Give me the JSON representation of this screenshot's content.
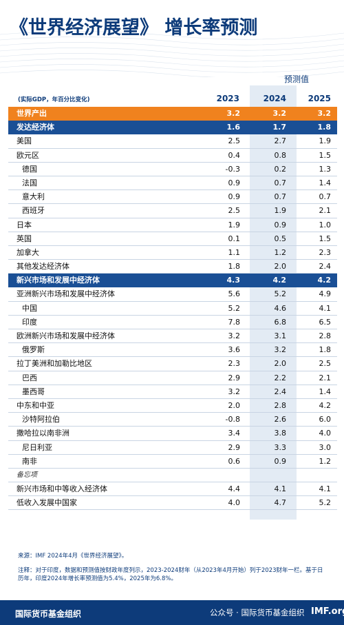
{
  "title": "《世界经济展望》 增长率预测",
  "projection_label": "预测值",
  "subheading": "(实际GDP，年百分比变化)",
  "colors": {
    "navy": "#0d3b7a",
    "orange": "#f0821e",
    "group_blue": "#1a4f95"
  },
  "chart_data": {
    "type": "table",
    "columns": [
      "2023",
      "2024",
      "2025"
    ],
    "rows": [
      {
        "name": "世界产出",
        "kind": "world",
        "values": [
          "3.2",
          "3.2",
          "3.2"
        ]
      },
      {
        "name": "发达经济体",
        "kind": "group",
        "values": [
          "1.6",
          "1.7",
          "1.8"
        ]
      },
      {
        "name": "美国",
        "kind": "item",
        "values": [
          "2.5",
          "2.7",
          "1.9"
        ]
      },
      {
        "name": "欧元区",
        "kind": "item",
        "values": [
          "0.4",
          "0.8",
          "1.5"
        ]
      },
      {
        "name": "德国",
        "kind": "sub",
        "values": [
          "-0.3",
          "0.2",
          "1.3"
        ]
      },
      {
        "name": "法国",
        "kind": "sub",
        "values": [
          "0.9",
          "0.7",
          "1.4"
        ]
      },
      {
        "name": "意大利",
        "kind": "sub",
        "values": [
          "0.9",
          "0.7",
          "0.7"
        ]
      },
      {
        "name": "西班牙",
        "kind": "sub",
        "values": [
          "2.5",
          "1.9",
          "2.1"
        ]
      },
      {
        "name": "日本",
        "kind": "item",
        "values": [
          "1.9",
          "0.9",
          "1.0"
        ]
      },
      {
        "name": "英国",
        "kind": "item",
        "values": [
          "0.1",
          "0.5",
          "1.5"
        ]
      },
      {
        "name": "加拿大",
        "kind": "item",
        "values": [
          "1.1",
          "1.2",
          "2.3"
        ]
      },
      {
        "name": "其他发达经济体",
        "kind": "item",
        "values": [
          "1.8",
          "2.0",
          "2.4"
        ]
      },
      {
        "name": "新兴市场和发展中经济体",
        "kind": "group",
        "values": [
          "4.3",
          "4.2",
          "4.2"
        ]
      },
      {
        "name": "亚洲新兴市场和发展中经济体",
        "kind": "item",
        "values": [
          "5.6",
          "5.2",
          "4.9"
        ]
      },
      {
        "name": "中国",
        "kind": "sub",
        "values": [
          "5.2",
          "4.6",
          "4.1"
        ]
      },
      {
        "name": "印度",
        "kind": "sub",
        "values": [
          "7.8",
          "6.8",
          "6.5"
        ]
      },
      {
        "name": "欧洲新兴市场和发展中经济体",
        "kind": "item",
        "values": [
          "3.2",
          "3.1",
          "2.8"
        ]
      },
      {
        "name": "俄罗斯",
        "kind": "sub",
        "values": [
          "3.6",
          "3.2",
          "1.8"
        ]
      },
      {
        "name": "拉丁美洲和加勒比地区",
        "kind": "item",
        "values": [
          "2.3",
          "2.0",
          "2.5"
        ]
      },
      {
        "name": "巴西",
        "kind": "sub",
        "values": [
          "2.9",
          "2.2",
          "2.1"
        ]
      },
      {
        "name": "墨西哥",
        "kind": "sub",
        "values": [
          "3.2",
          "2.4",
          "1.4"
        ]
      },
      {
        "name": "中东和中亚",
        "kind": "item",
        "values": [
          "2.0",
          "2.8",
          "4.2"
        ]
      },
      {
        "name": "沙特阿拉伯",
        "kind": "sub",
        "values": [
          "-0.8",
          "2.6",
          "6.0"
        ]
      },
      {
        "name": "撒哈拉以南非洲",
        "kind": "item",
        "values": [
          "3.4",
          "3.8",
          "4.0"
        ]
      },
      {
        "name": "尼日利亚",
        "kind": "sub",
        "values": [
          "2.9",
          "3.3",
          "3.0"
        ]
      },
      {
        "name": "南非",
        "kind": "sub",
        "values": [
          "0.6",
          "0.9",
          "1.2"
        ]
      },
      {
        "name": "备忘项",
        "kind": "memo",
        "values": [
          "",
          "",
          ""
        ]
      },
      {
        "name": "新兴市场和中等收入经济体",
        "kind": "item",
        "values": [
          "4.4",
          "4.1",
          "4.1"
        ]
      },
      {
        "name": "低收入发展中国家",
        "kind": "item",
        "values": [
          "4.0",
          "4.7",
          "5.2"
        ]
      }
    ]
  },
  "source": "来源：IMF 2024年4月《世界经济展望》。",
  "note": "注释：对于印度，数据和预测值按财政年度列示，2023-2024财年（从2023年4月开始）列于2023财年一栏。基于日历年，印度2024年增长率预测值为5.4%，2025年为6.8%。",
  "footer": {
    "org": "国际货币基金组织",
    "watermark": "公众号 · 国际货币基金组织",
    "logo": "IMF.org"
  }
}
